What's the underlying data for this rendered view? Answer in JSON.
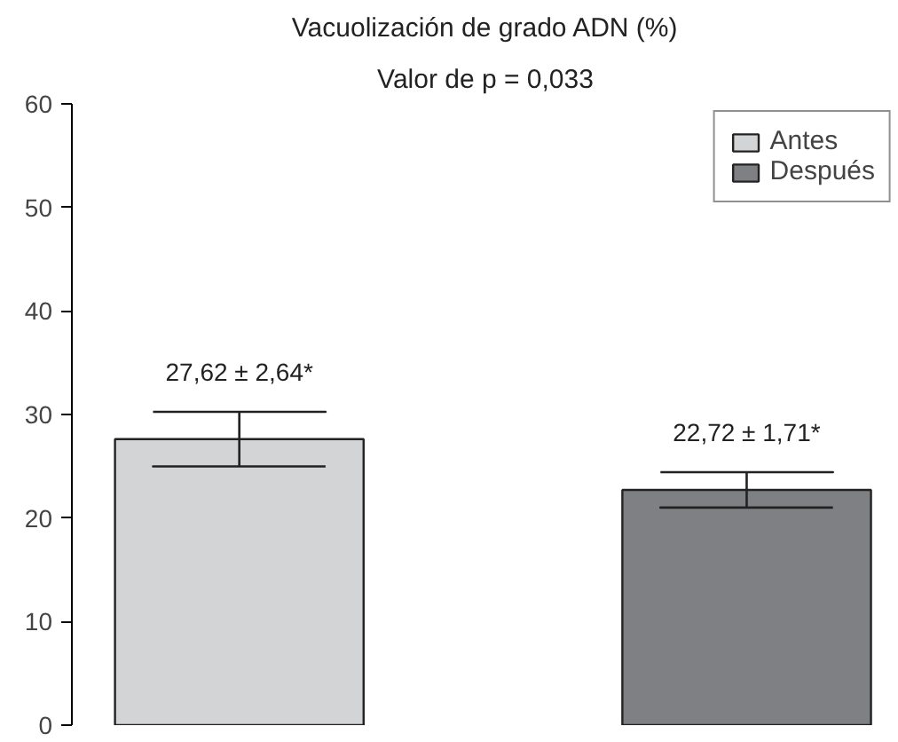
{
  "chart_data": {
    "type": "bar",
    "title": "Vacuolización de grado ADN (%)",
    "subtitle": "Valor de p = 0,033",
    "categories": [
      null,
      null
    ],
    "stacked": true,
    "series": [
      {
        "name": "Antes",
        "color": "#d3d4d6",
        "values": [
          27.62,
          null
        ],
        "errors": [
          2.64,
          null
        ],
        "value_labels": [
          "27,62 ± 2,64*",
          null
        ]
      },
      {
        "name": "Después",
        "color": "#7f8083",
        "values": [
          null,
          22.72
        ],
        "errors": [
          null,
          1.71
        ],
        "value_labels": [
          null,
          "22,72 ± 1,71*"
        ]
      }
    ],
    "ylim": [
      0,
      60
    ],
    "yticks": [
      0,
      10,
      20,
      30,
      40,
      50,
      60
    ],
    "grid": false,
    "legend": "top right",
    "tick_labels": "y"
  }
}
